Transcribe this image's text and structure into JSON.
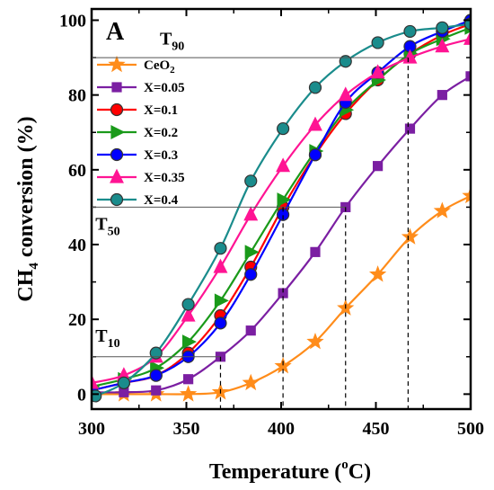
{
  "chart_data": {
    "type": "line",
    "panel_label": "A",
    "xlabel": "Temperature (°C)",
    "xlabel_main": "Temperature (",
    "xlabel_sup": "o",
    "xlabel_end": "C)",
    "ylabel_main": "CH",
    "ylabel_sub": "4",
    "ylabel_end": " conversion (%)",
    "ylabel": "CH4 conversion (%)",
    "xlim": [
      300,
      500
    ],
    "ylim": [
      -4,
      103
    ],
    "xticks": [
      300,
      350,
      400,
      450,
      500
    ],
    "yticks": [
      0,
      20,
      40,
      60,
      80,
      100
    ],
    "legend_position": "top-left",
    "grid": false,
    "series": [
      {
        "name": "CeO2",
        "name_main": "CeO",
        "name_sub": "2",
        "color": "#ff8c1a",
        "marker": "star",
        "x": [
          300,
          317,
          334,
          351,
          368,
          384,
          401,
          418,
          434,
          451,
          468,
          485,
          500
        ],
        "y": [
          0,
          0,
          0,
          0,
          0.5,
          3,
          7.5,
          14,
          23,
          32,
          42,
          49,
          53
        ]
      },
      {
        "name": "X=0.05",
        "color": "#7b1fa2",
        "marker": "square",
        "x": [
          300,
          317,
          334,
          351,
          368,
          384,
          401,
          418,
          434,
          451,
          468,
          485,
          500
        ],
        "y": [
          0.5,
          0.5,
          1,
          4,
          10,
          17,
          27,
          38,
          50,
          61,
          71,
          80,
          85
        ]
      },
      {
        "name": "X=0.1",
        "color": "#ff0000",
        "marker": "circle",
        "x": [
          300,
          317,
          334,
          351,
          368,
          384,
          401,
          418,
          434,
          451,
          468,
          485,
          500
        ],
        "y": [
          1,
          3,
          5,
          11,
          21,
          34,
          50,
          64,
          75,
          84,
          91,
          96,
          99
        ]
      },
      {
        "name": "X=0.2",
        "color": "#1a9a1a",
        "marker": "triangle-right",
        "x": [
          300,
          317,
          334,
          351,
          368,
          384,
          401,
          418,
          434,
          451,
          468,
          485,
          500
        ],
        "y": [
          2,
          4,
          7,
          14,
          25,
          38,
          52,
          65,
          76,
          84,
          91,
          95,
          98
        ]
      },
      {
        "name": "X=0.3",
        "color": "#0000ff",
        "marker": "circle",
        "x": [
          300,
          317,
          334,
          351,
          368,
          384,
          401,
          418,
          434,
          451,
          468,
          485,
          500
        ],
        "y": [
          1,
          3,
          5,
          10,
          19,
          32,
          48,
          64,
          78,
          86,
          93,
          97,
          100
        ]
      },
      {
        "name": "X=0.35",
        "color": "#ff1493",
        "marker": "triangle-up",
        "x": [
          300,
          317,
          334,
          351,
          368,
          384,
          401,
          418,
          434,
          451,
          468,
          485,
          500
        ],
        "y": [
          3,
          5,
          10,
          21,
          34,
          48,
          61,
          72,
          80,
          86,
          90,
          93,
          95
        ]
      },
      {
        "name": "X=0.4",
        "color": "#1a8c8c",
        "marker": "circle",
        "x": [
          302,
          317,
          334,
          351,
          368,
          384,
          401,
          418,
          434,
          451,
          468,
          485,
          500
        ],
        "y": [
          -0.5,
          3,
          11,
          24,
          39,
          57,
          71,
          82,
          89,
          94,
          97,
          98,
          99
        ]
      }
    ],
    "annotations": [
      {
        "label": "T",
        "sub": "90",
        "y": 90,
        "label_x": 336,
        "label_y": 93.5
      },
      {
        "label": "T",
        "sub": "50",
        "y": 50,
        "label_x": 302,
        "label_y": 44
      },
      {
        "label": "T",
        "sub": "10",
        "y": 10,
        "label_x": 302,
        "label_y": 14
      }
    ],
    "vertical_markers": [
      {
        "x": 368,
        "y": 10
      },
      {
        "x": 401,
        "y": 50
      },
      {
        "x": 434,
        "y": 50
      },
      {
        "x": 467,
        "y": 90
      }
    ]
  }
}
